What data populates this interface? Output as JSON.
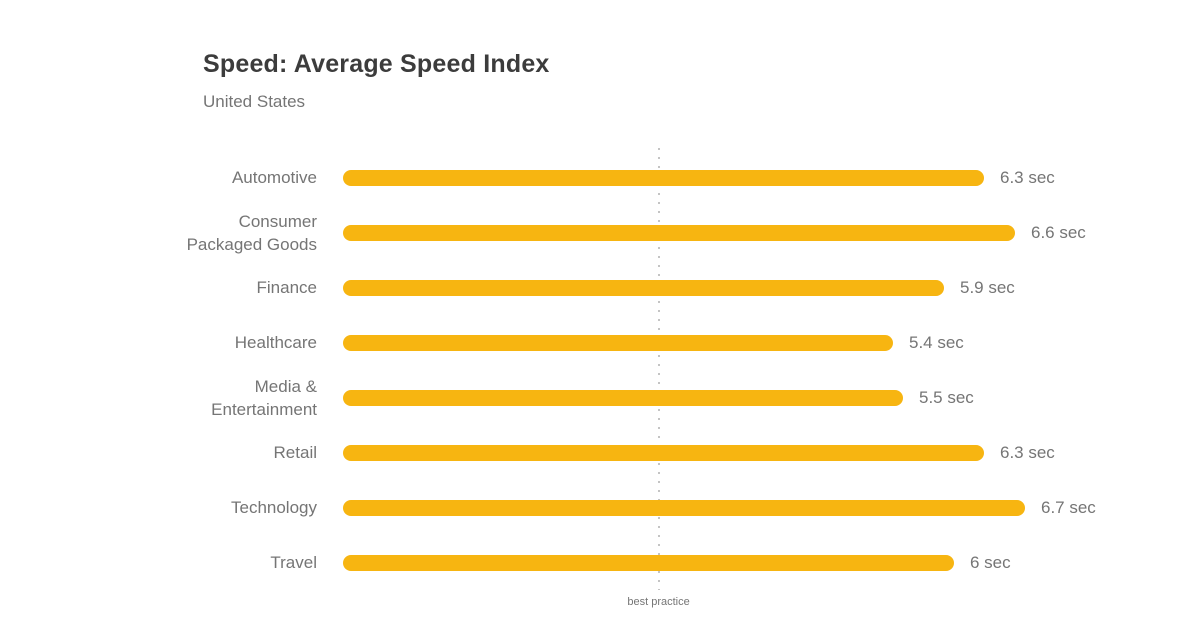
{
  "chart_data": {
    "type": "bar",
    "orientation": "horizontal",
    "title": "Speed: Average Speed Index",
    "subtitle": "United States",
    "unit": "sec",
    "categories": [
      "Automotive",
      "Consumer Packaged Goods",
      "Finance",
      "Healthcare",
      "Media & Entertainment",
      "Retail",
      "Technology",
      "Travel"
    ],
    "category_display": [
      "Automotive",
      "Consumer\nPackaged Goods",
      "Finance",
      "Healthcare",
      "Media &\nEntertainment",
      "Retail",
      "Technology",
      "Travel"
    ],
    "values": [
      6.3,
      6.6,
      5.9,
      5.4,
      5.5,
      6.3,
      6.7,
      6
    ],
    "value_labels": [
      "6.3 sec",
      "6.6 sec",
      "5.9 sec",
      "5.4 sec",
      "5.5 sec",
      "6.3 sec",
      "6.7 sec",
      "6 sec"
    ],
    "xlim": [
      0,
      6.7
    ],
    "annotation": {
      "label": "best practice",
      "value": 3.1,
      "style": "vertical-dotted-line"
    },
    "legend": "none",
    "grid": "off",
    "colors": {
      "bar": "#F7B511",
      "title_text": "#3C3C3C",
      "label_text": "#757575",
      "annotation_line": "#C4C4C4",
      "background": "#FFFFFF"
    }
  }
}
